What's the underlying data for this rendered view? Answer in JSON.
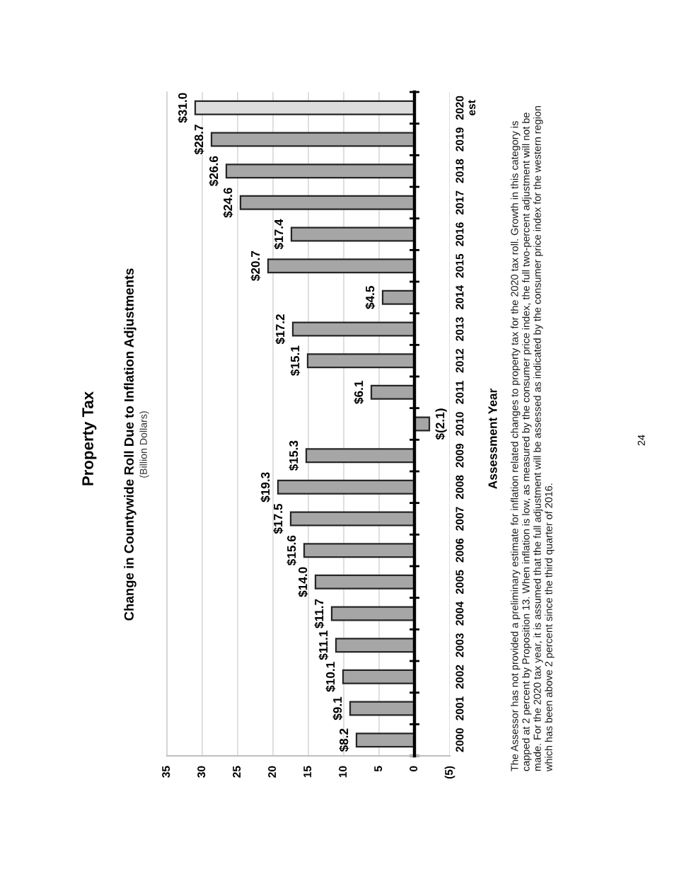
{
  "chart_data": {
    "type": "bar",
    "orientation": "horizontal",
    "title": "Property Tax",
    "subtitle": "Change in Countywide Roll Due to Inflation Adjustments",
    "ylabel": "Assessment Year",
    "annotations": [
      "(Billion Dollars)",
      "The Assessor has not provided a preliminary estimate for inflation related changes to property tax for the 2020 tax roll. Growth in this category is capped at 2 percent by Proposition 13. When inflation is low, as measured by the consumer price index, the full two-percent adjustment will not be made. For the 2020 tax year, it is assumed that the full adjustment will be assessed as indicated by the consumer price index for the western region which has been above 2 percent since the third quarter of 2016.",
      "24"
    ],
    "categories": [
      "2020\nest",
      "2019",
      "2018",
      "2017",
      "2016",
      "2015",
      "2014",
      "2013",
      "2012",
      "2011",
      "2010",
      "2009",
      "2008",
      "2007",
      "2006",
      "2005",
      "2004",
      "2003",
      "2002",
      "2001",
      "2000"
    ],
    "values": [
      31.0,
      28.7,
      26.6,
      24.6,
      17.4,
      20.7,
      4.5,
      17.2,
      15.1,
      6.1,
      -2.1,
      15.3,
      19.3,
      17.5,
      15.6,
      14.0,
      11.7,
      11.1,
      10.1,
      9.1,
      8.2
    ],
    "value_labels": [
      "$31.0",
      "$28.7",
      "$26.6",
      "$24.6",
      "$17.4",
      "$20.7",
      "$4.5",
      "$17.2",
      "$15.1",
      "$6.1",
      "$(2.1)",
      "$15.3",
      "$19.3",
      "$17.5",
      "$15.6",
      "$14.0",
      "$11.7",
      "$11.1",
      "$10.1",
      "$9.1",
      "$8.2"
    ],
    "colors": [
      "#dcdcdc",
      "#a6a6a6",
      "#a6a6a6",
      "#a6a6a6",
      "#a6a6a6",
      "#a6a6a6",
      "#a6a6a6",
      "#a6a6a6",
      "#a6a6a6",
      "#a6a6a6",
      "#a6a6a6",
      "#a6a6a6",
      "#a6a6a6",
      "#a6a6a6",
      "#a6a6a6",
      "#a6a6a6",
      "#a6a6a6",
      "#a6a6a6",
      "#a6a6a6",
      "#a6a6a6",
      "#a6a6a6"
    ],
    "xlim": [
      35,
      -5
    ],
    "xticks": [
      35,
      30,
      25,
      20,
      15,
      10,
      5,
      0,
      {
        "value": -5,
        "label": "(5)"
      }
    ],
    "grid": "x"
  }
}
